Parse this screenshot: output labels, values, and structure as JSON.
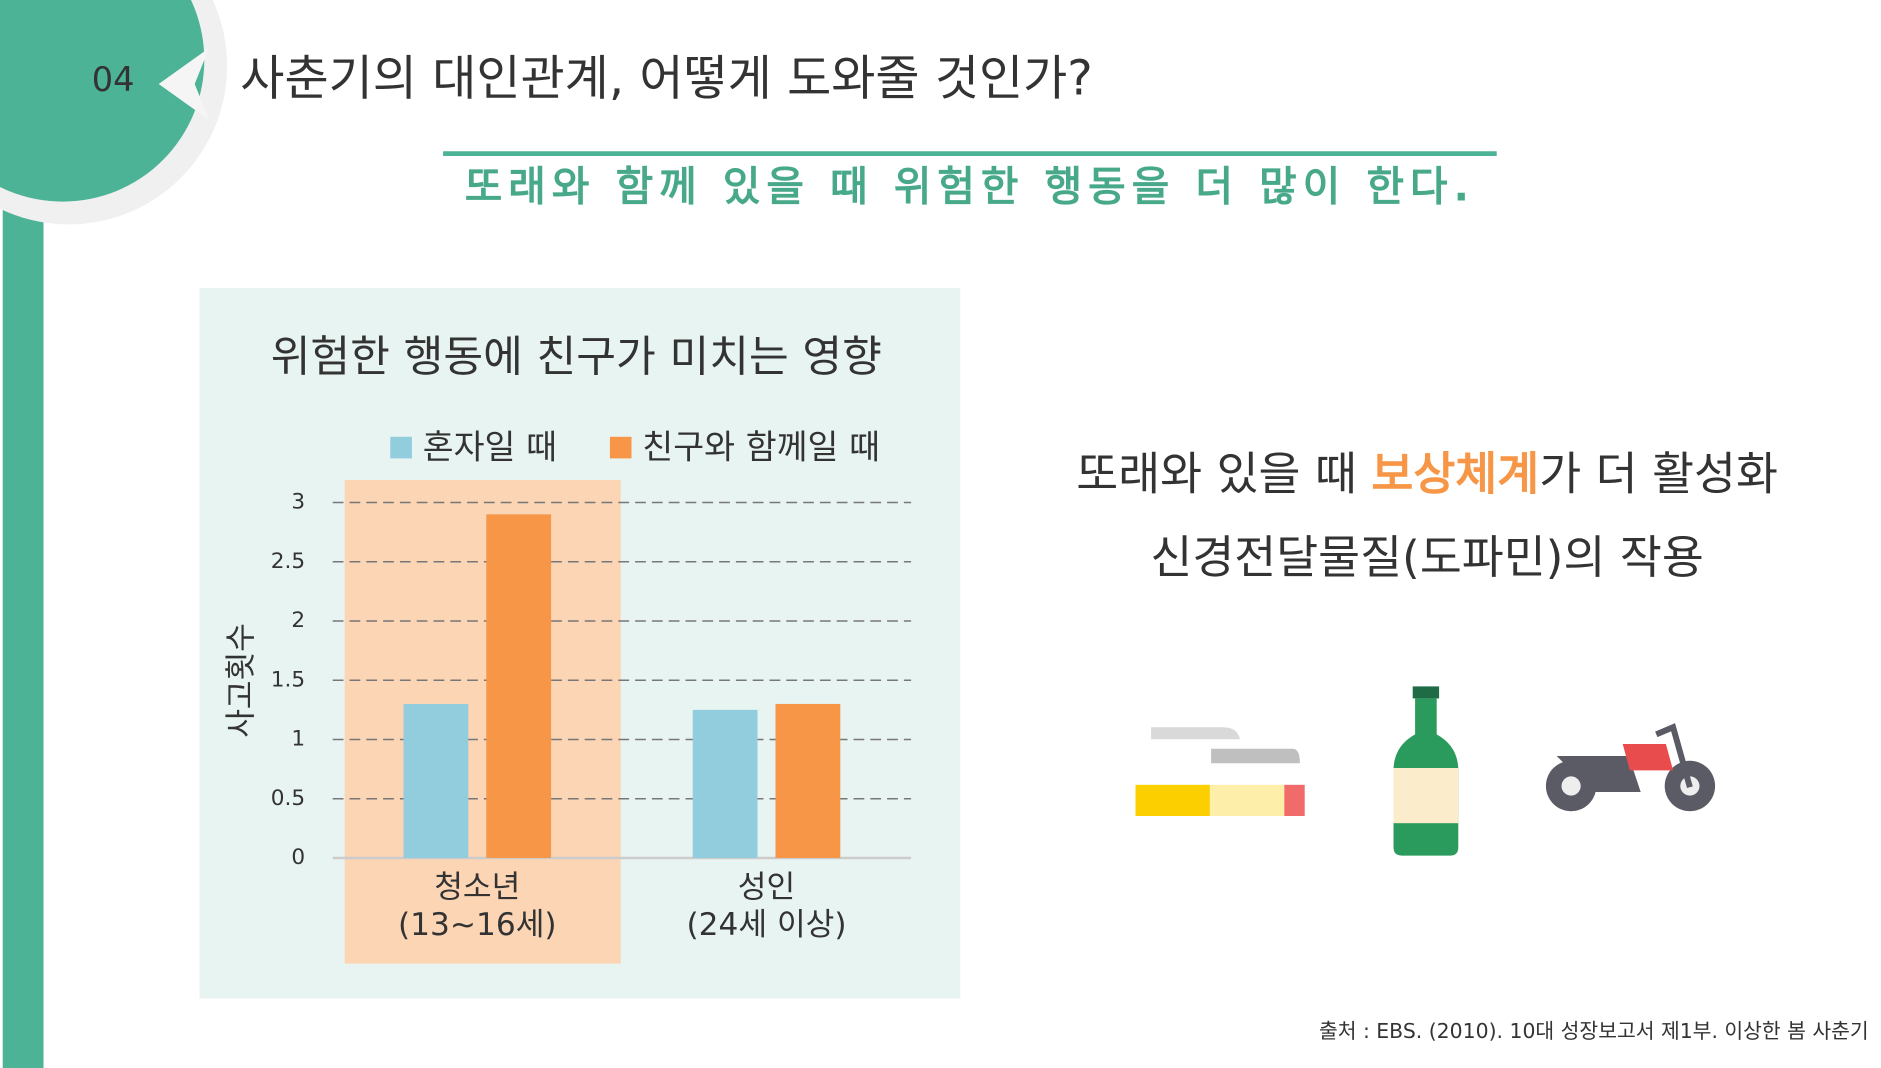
{
  "header": {
    "number": "04",
    "title": "사춘기의 대인관계, 어떻게 도와줄 것인가?",
    "subtitle": "또래와 함께 있을 때 위험한 행동을 더 많이 한다."
  },
  "chart_data": {
    "type": "bar",
    "title": "위험한 행동에 친구가 미치는 영향",
    "y_label": "사고횟수",
    "categories": [
      "청소년\n(13~16세)",
      "성인\n(24세 이상)"
    ],
    "series": [
      {
        "name": "혼자일 때",
        "color": "#92cddd",
        "values": [
          1.3,
          1.25
        ]
      },
      {
        "name": "친구와 함께일 때",
        "color": "#f79646",
        "values": [
          2.9,
          1.3
        ]
      }
    ],
    "ylim": [
      0,
      3.2
    ],
    "yticks": [
      0,
      0.5,
      1,
      1.5,
      2,
      2.5,
      3
    ],
    "grid": true,
    "legend": "top"
  },
  "right_text": {
    "line1": [
      "또래와 있을 때 ",
      "보상체계",
      "가 더 활성화"
    ],
    "line2": "신경전달물질(도파민)의 작용"
  },
  "source": "출처 : EBS. (2010). 10대 성장보고서 제1부. 이상한 봄 사춘기"
}
